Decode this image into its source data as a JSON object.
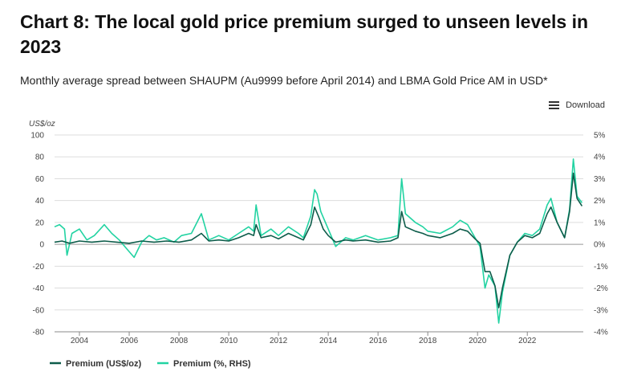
{
  "header": {
    "title": "Chart 8: The local gold price premium surged to unseen levels in 2023",
    "subtitle": "Monthly average spread between SHAUPM (Au9999 before April 2014) and LBMA Gold Price AM in USD*"
  },
  "toolbar": {
    "download_label": "Download"
  },
  "colors": {
    "primary_series": "#0d5c4a",
    "secondary_series": "#22d3a2",
    "zero_line": "#999999",
    "grid": "#dddddd"
  },
  "chart_data": {
    "type": "line",
    "title": "Chart 8: The local gold price premium surged to unseen levels in 2023",
    "ylabel": "US$/oz",
    "ylim": [
      -80,
      100
    ],
    "y_ticks": [
      "100",
      "80",
      "60",
      "40",
      "20",
      "0",
      "-20",
      "-40",
      "-60",
      "-80"
    ],
    "y2lim": [
      -4,
      5
    ],
    "y2_ticks": [
      "5%",
      "4%",
      "3%",
      "2%",
      "1%",
      "0%",
      "-1%",
      "-2%",
      "-3%",
      "-4%"
    ],
    "x_ticks": [
      "2004",
      "2006",
      "2008",
      "2010",
      "2012",
      "2014",
      "2016",
      "2018",
      "2020",
      "2022"
    ],
    "xlim": [
      2003.0,
      2024.25
    ],
    "legend": [
      "Premium (US$/oz)",
      "Premium (%, RHS)"
    ],
    "series": [
      {
        "name": "Premium (US$/oz)",
        "axis": "left",
        "points": [
          [
            2003.0,
            2
          ],
          [
            2003.3,
            3
          ],
          [
            2003.6,
            1
          ],
          [
            2004.0,
            3
          ],
          [
            2004.5,
            2
          ],
          [
            2005.0,
            3
          ],
          [
            2005.5,
            2
          ],
          [
            2006.0,
            1
          ],
          [
            2006.5,
            3
          ],
          [
            2007.0,
            2
          ],
          [
            2007.5,
            3
          ],
          [
            2008.0,
            2
          ],
          [
            2008.5,
            4
          ],
          [
            2008.9,
            10
          ],
          [
            2009.2,
            3
          ],
          [
            2009.6,
            4
          ],
          [
            2010.0,
            3
          ],
          [
            2010.4,
            6
          ],
          [
            2010.8,
            10
          ],
          [
            2011.0,
            8
          ],
          [
            2011.1,
            18
          ],
          [
            2011.3,
            6
          ],
          [
            2011.7,
            8
          ],
          [
            2012.0,
            5
          ],
          [
            2012.4,
            10
          ],
          [
            2012.8,
            6
          ],
          [
            2013.0,
            4
          ],
          [
            2013.3,
            18
          ],
          [
            2013.45,
            34
          ],
          [
            2013.6,
            26
          ],
          [
            2013.8,
            14
          ],
          [
            2014.0,
            8
          ],
          [
            2014.3,
            2
          ],
          [
            2014.7,
            4
          ],
          [
            2015.0,
            3
          ],
          [
            2015.5,
            4
          ],
          [
            2016.0,
            2
          ],
          [
            2016.5,
            3
          ],
          [
            2016.8,
            6
          ],
          [
            2016.95,
            30
          ],
          [
            2017.1,
            16
          ],
          [
            2017.5,
            12
          ],
          [
            2017.8,
            10
          ],
          [
            2018.0,
            8
          ],
          [
            2018.5,
            6
          ],
          [
            2019.0,
            10
          ],
          [
            2019.3,
            14
          ],
          [
            2019.6,
            12
          ],
          [
            2019.9,
            5
          ],
          [
            2020.1,
            1
          ],
          [
            2020.3,
            -25
          ],
          [
            2020.5,
            -25
          ],
          [
            2020.7,
            -38
          ],
          [
            2020.85,
            -58
          ],
          [
            2021.0,
            -40
          ],
          [
            2021.3,
            -10
          ],
          [
            2021.6,
            2
          ],
          [
            2021.9,
            8
          ],
          [
            2022.2,
            6
          ],
          [
            2022.5,
            10
          ],
          [
            2022.8,
            28
          ],
          [
            2022.95,
            34
          ],
          [
            2023.2,
            20
          ],
          [
            2023.5,
            6
          ],
          [
            2023.7,
            30
          ],
          [
            2023.85,
            65
          ],
          [
            2024.0,
            42
          ],
          [
            2024.2,
            35
          ]
        ]
      },
      {
        "name": "Premium (%, RHS)",
        "axis": "right",
        "points": [
          [
            2003.0,
            0.8
          ],
          [
            2003.2,
            0.9
          ],
          [
            2003.4,
            0.7
          ],
          [
            2003.5,
            -0.5
          ],
          [
            2003.7,
            0.5
          ],
          [
            2004.0,
            0.7
          ],
          [
            2004.3,
            0.2
          ],
          [
            2004.6,
            0.4
          ],
          [
            2005.0,
            0.9
          ],
          [
            2005.3,
            0.5
          ],
          [
            2005.6,
            0.2
          ],
          [
            2005.9,
            -0.2
          ],
          [
            2006.2,
            -0.6
          ],
          [
            2006.5,
            0.1
          ],
          [
            2006.8,
            0.4
          ],
          [
            2007.1,
            0.2
          ],
          [
            2007.4,
            0.3
          ],
          [
            2007.8,
            0.1
          ],
          [
            2008.1,
            0.4
          ],
          [
            2008.5,
            0.5
          ],
          [
            2008.9,
            1.4
          ],
          [
            2009.2,
            0.2
          ],
          [
            2009.6,
            0.4
          ],
          [
            2010.0,
            0.2
          ],
          [
            2010.4,
            0.5
          ],
          [
            2010.8,
            0.8
          ],
          [
            2011.0,
            0.6
          ],
          [
            2011.1,
            1.8
          ],
          [
            2011.3,
            0.4
          ],
          [
            2011.7,
            0.7
          ],
          [
            2012.0,
            0.4
          ],
          [
            2012.4,
            0.8
          ],
          [
            2012.8,
            0.5
          ],
          [
            2013.0,
            0.3
          ],
          [
            2013.3,
            1.3
          ],
          [
            2013.45,
            2.5
          ],
          [
            2013.55,
            2.3
          ],
          [
            2013.7,
            1.5
          ],
          [
            2014.0,
            0.7
          ],
          [
            2014.3,
            -0.1
          ],
          [
            2014.7,
            0.3
          ],
          [
            2015.0,
            0.2
          ],
          [
            2015.5,
            0.4
          ],
          [
            2016.0,
            0.2
          ],
          [
            2016.5,
            0.3
          ],
          [
            2016.8,
            0.4
          ],
          [
            2016.95,
            3.0
          ],
          [
            2017.1,
            1.4
          ],
          [
            2017.5,
            1.0
          ],
          [
            2017.8,
            0.8
          ],
          [
            2018.0,
            0.6
          ],
          [
            2018.5,
            0.5
          ],
          [
            2019.0,
            0.8
          ],
          [
            2019.3,
            1.1
          ],
          [
            2019.6,
            0.9
          ],
          [
            2019.9,
            0.3
          ],
          [
            2020.1,
            -0.1
          ],
          [
            2020.3,
            -2.0
          ],
          [
            2020.45,
            -1.4
          ],
          [
            2020.7,
            -1.9
          ],
          [
            2020.85,
            -3.6
          ],
          [
            2021.0,
            -2.2
          ],
          [
            2021.3,
            -0.5
          ],
          [
            2021.6,
            0.1
          ],
          [
            2021.9,
            0.5
          ],
          [
            2022.2,
            0.4
          ],
          [
            2022.5,
            0.7
          ],
          [
            2022.8,
            1.8
          ],
          [
            2022.95,
            2.1
          ],
          [
            2023.2,
            1.0
          ],
          [
            2023.5,
            0.3
          ],
          [
            2023.7,
            1.6
          ],
          [
            2023.85,
            3.9
          ],
          [
            2024.0,
            2.2
          ],
          [
            2024.2,
            1.9
          ]
        ]
      }
    ]
  }
}
